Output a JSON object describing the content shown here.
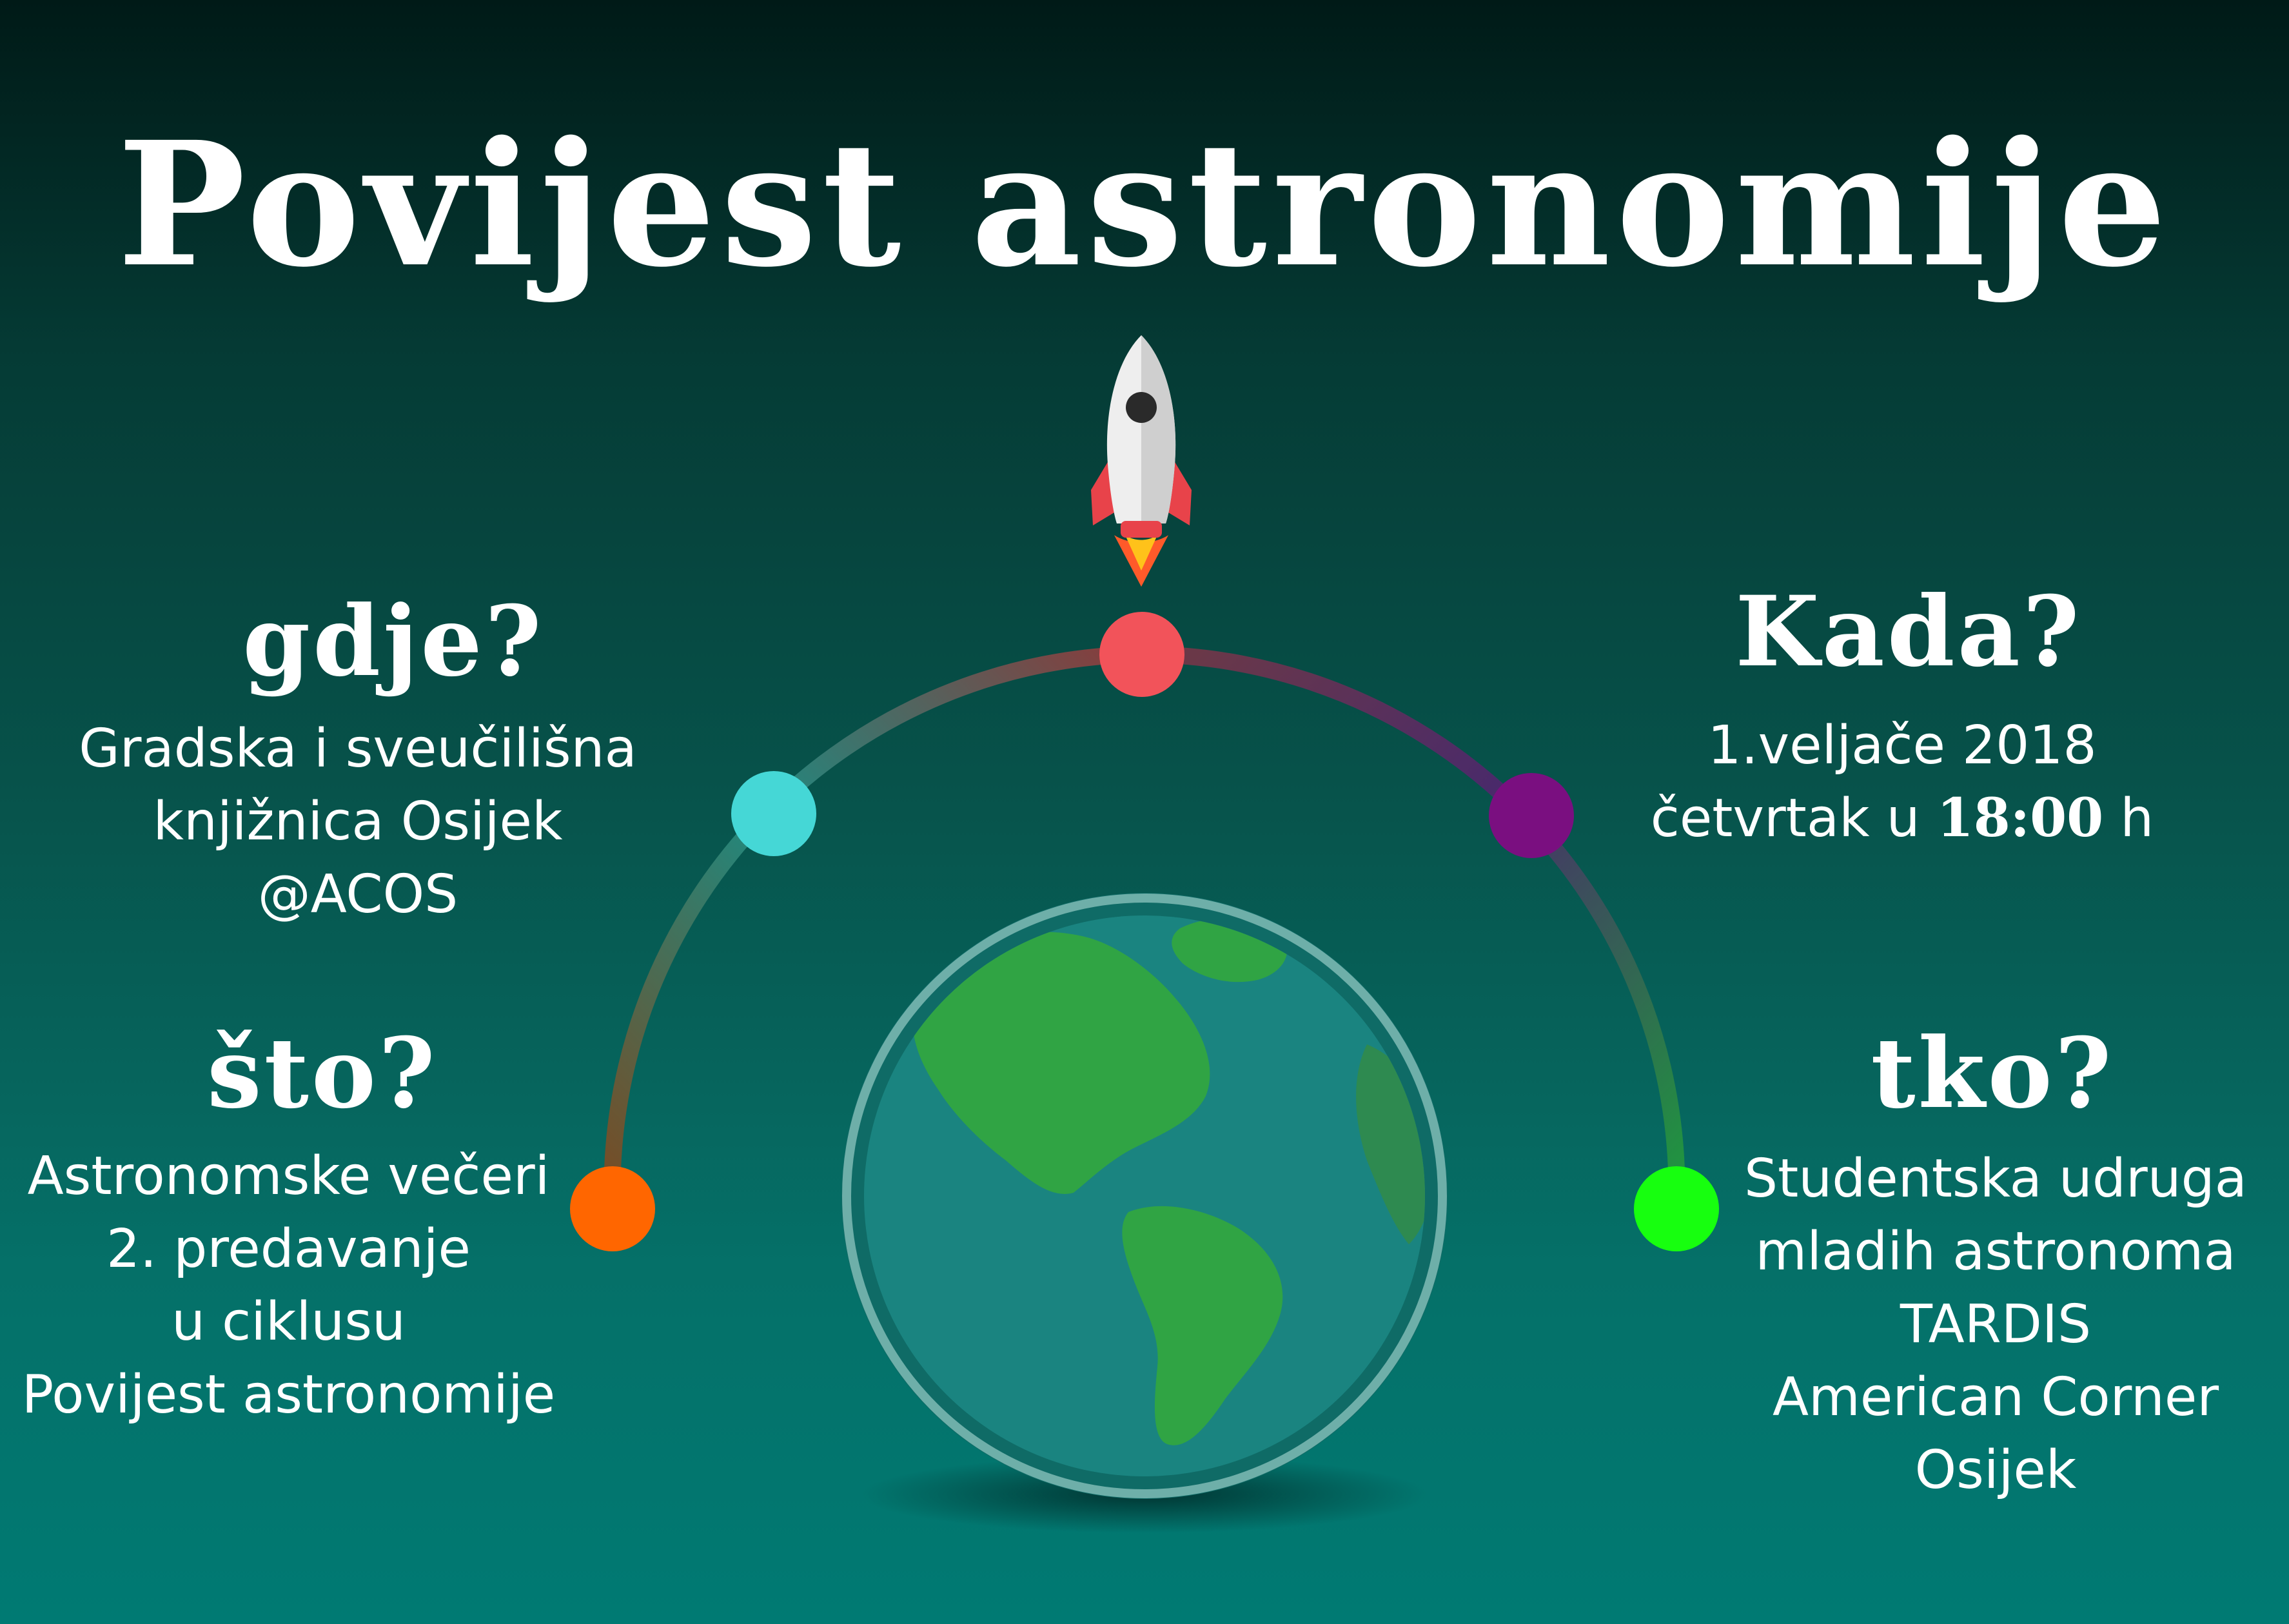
{
  "title": "Povijest astronomije",
  "where": {
    "heading": "gdje?",
    "lines": [
      "Gradska i sveučilišna",
      "knjižnica Osijek",
      "@ACOS"
    ]
  },
  "what": {
    "heading": "što?",
    "lines": [
      "Astronomske večeri",
      "2. predavanje",
      "u ciklusu",
      "Povijest astronomije"
    ]
  },
  "when": {
    "heading": "Kada?",
    "date": "1.veljače 2018",
    "day_prefix": "četvrtak u",
    "time": "18:00",
    "time_suffix": "h"
  },
  "who": {
    "heading": "tko?",
    "lines": [
      "Studentska udruga",
      "mladih astronoma",
      "TARDIS",
      "American Corner",
      "Osijek"
    ]
  },
  "icons": {
    "rocket": "rocket-icon",
    "earth": "earth-globe-icon"
  },
  "colors": {
    "dot_top": "#f2535a",
    "dot_upper_left": "#45d7d6",
    "dot_upper_right": "#7a0f80",
    "dot_lower_left": "#ff6600",
    "dot_lower_right": "#17ff0f",
    "ocean": "#1a8480",
    "land": "#30a444",
    "rocket_body": "#eeeeee",
    "rocket_fins": "#e8434a"
  }
}
